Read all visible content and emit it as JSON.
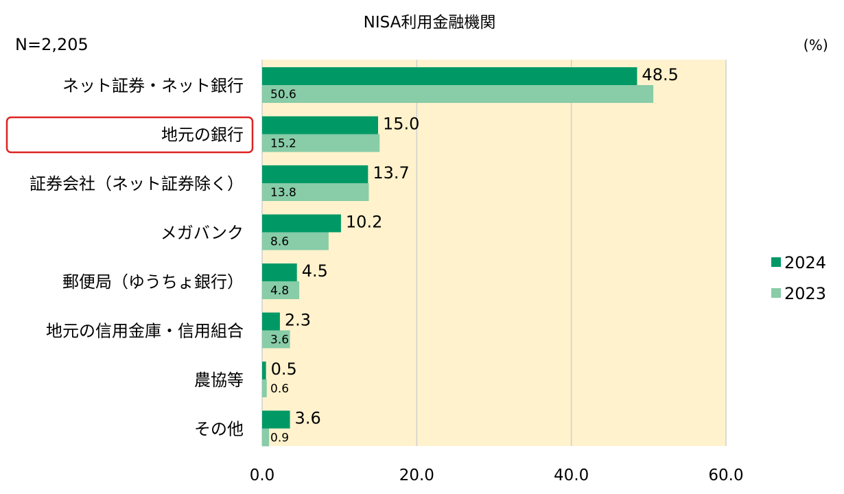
{
  "chart_data": {
    "type": "bar",
    "orientation": "horizontal",
    "title": "NISA利用金融機関",
    "sample_note": "N=2,205",
    "unit_label": "(%)",
    "categories": [
      "ネット証券・ネット銀行",
      "地元の銀行",
      "証券会社（ネット証券除く）",
      "メガバンク",
      "郵便局（ゆうちょ銀行）",
      "地元の信用金庫・信用組合",
      "農協等",
      "その他"
    ],
    "highlighted_category": "地元の銀行",
    "series": [
      {
        "name": "2024",
        "values": [
          48.5,
          15.0,
          13.7,
          10.2,
          4.5,
          2.3,
          0.5,
          3.6
        ],
        "labels": [
          "48.5",
          "15.0",
          "13.7",
          "10.2",
          "4.5",
          "2.3",
          "0.5",
          "3.6"
        ]
      },
      {
        "name": "2023",
        "values": [
          50.6,
          15.2,
          13.8,
          8.6,
          4.8,
          3.6,
          0.6,
          0.9
        ],
        "labels": [
          "50.6",
          "15.2",
          "13.8",
          "8.6",
          "4.8",
          "3.6",
          "0.6",
          "0.9"
        ]
      }
    ],
    "xlim": [
      0,
      60
    ],
    "xticks": [
      0,
      20,
      40,
      60
    ],
    "xtick_labels": [
      "0.0",
      "20.0",
      "40.0",
      "60.0"
    ],
    "grid": true,
    "legend_position": "right"
  },
  "colors": {
    "series_2024": "#009966",
    "series_2023": "#88cca8",
    "plot_background": "#fff2cc",
    "gridline": "#d0d0d0",
    "highlight_border": "#dd2222"
  }
}
